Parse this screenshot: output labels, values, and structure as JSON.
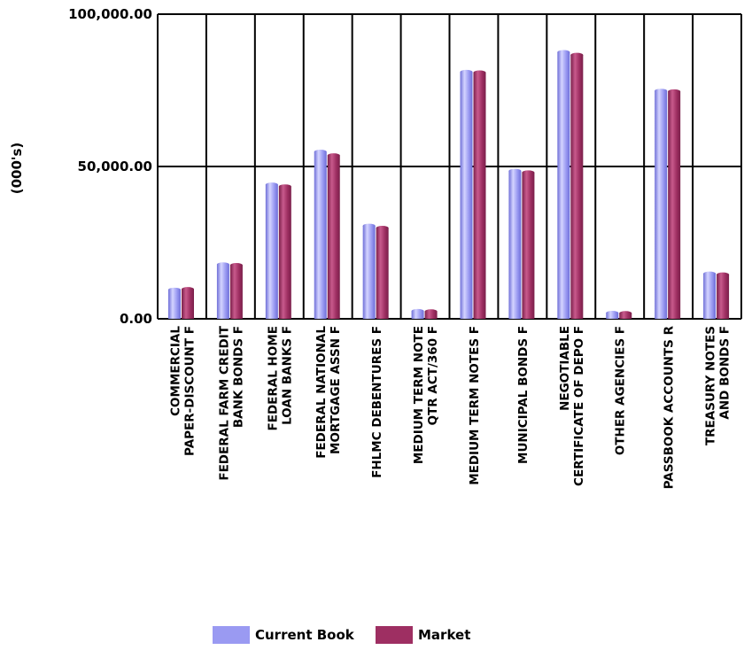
{
  "colors": {
    "current_book": "#9a9af2",
    "market": "#9e2f62"
  },
  "chart_data": {
    "type": "bar",
    "ylabel": "(000's)",
    "ylim": [
      0,
      100000
    ],
    "yticks": [
      "0.00",
      "50,000.00",
      "100,000.00"
    ],
    "ytick_values": [
      0,
      50000,
      100000
    ],
    "grid": true,
    "legend_position": "bottom",
    "categories": [
      [
        "COMMERCIAL",
        "PAPER-DISCOUNT F"
      ],
      [
        "FEDERAL FARM CREDIT",
        "BANK BONDS F"
      ],
      [
        "FEDERAL HOME",
        "LOAN BANKS F"
      ],
      [
        "FEDERAL NATIONAL",
        "MORTGAGE ASSN F"
      ],
      [
        "FHLMC DEBENTURES F"
      ],
      [
        "MEDIUM TERM NOTE",
        "QTR ACT/360 F"
      ],
      [
        "MEDIUM TERM NOTES F"
      ],
      [
        "MUNICIPAL BONDS F"
      ],
      [
        "NEGOTIABLE",
        "CERTIFICATE OF DEPO F"
      ],
      [
        "OTHER AGENCIES F"
      ],
      [
        "PASSBOOK ACCOUNTS R"
      ],
      [
        "TREASURY NOTES",
        "AND BONDS F"
      ]
    ],
    "series": [
      {
        "name": "Current Book",
        "values": [
          9500,
          17800,
          44000,
          54800,
          30500,
          2500,
          81000,
          48500,
          87500,
          1900,
          74800,
          14800
        ]
      },
      {
        "name": "Market",
        "values": [
          9700,
          17600,
          43400,
          53600,
          29800,
          2400,
          80800,
          48000,
          86600,
          1800,
          74600,
          14500
        ]
      }
    ]
  }
}
